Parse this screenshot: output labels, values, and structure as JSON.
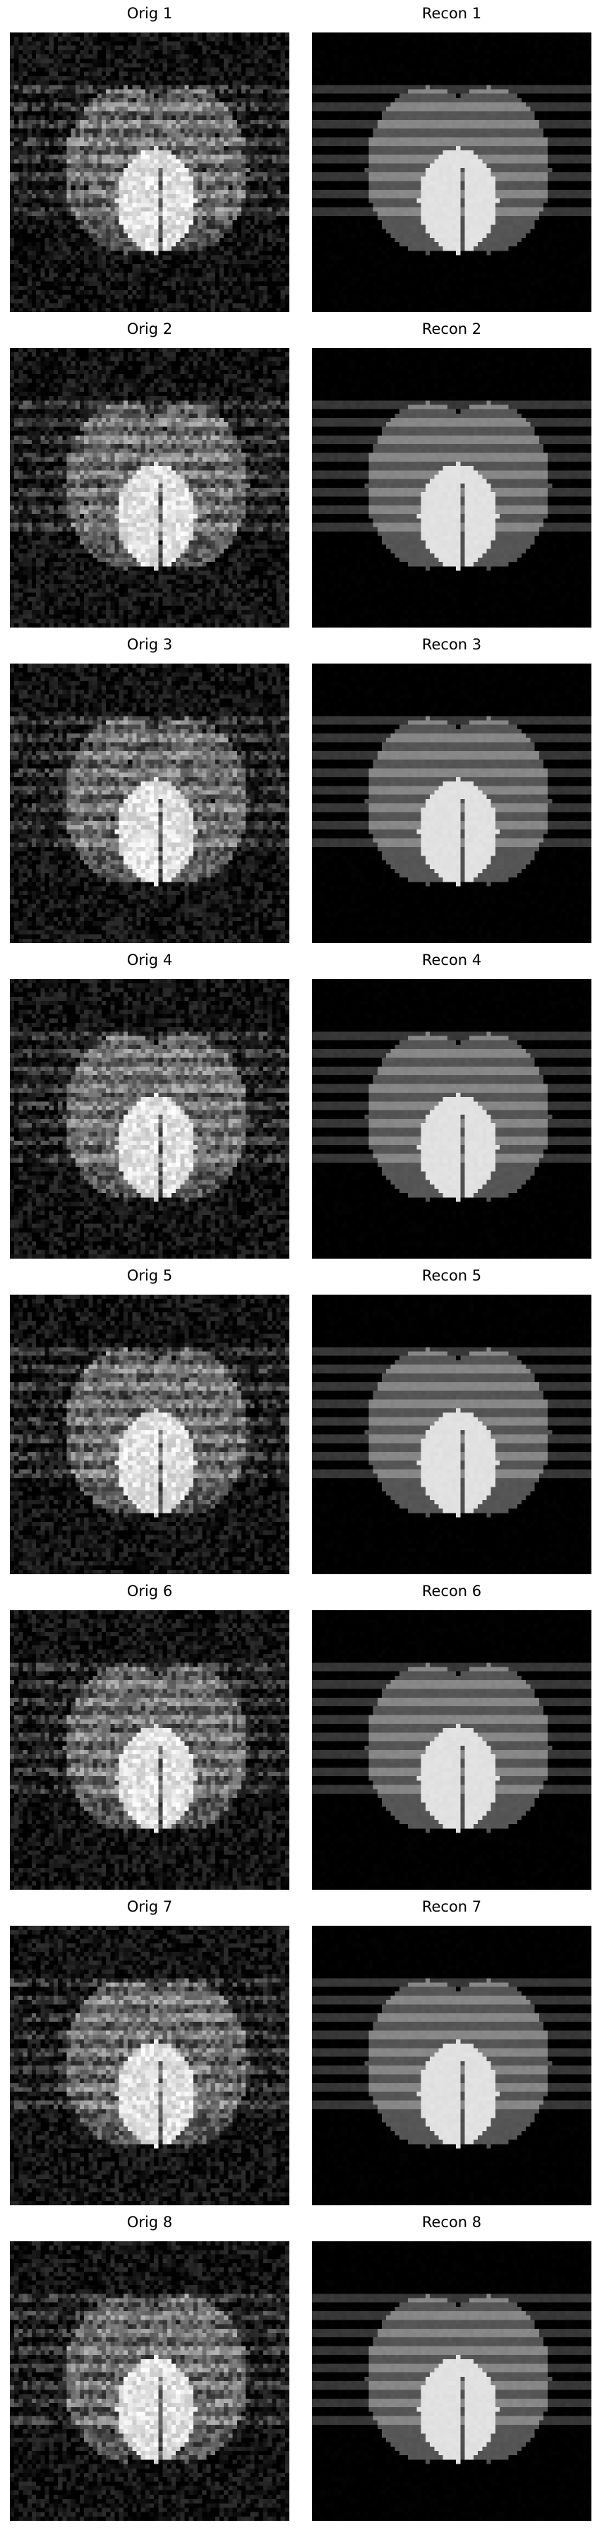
{
  "panels": [
    {
      "orig_title": "Orig 1",
      "recon_title": "Recon 1"
    },
    {
      "orig_title": "Orig 2",
      "recon_title": "Recon 2"
    },
    {
      "orig_title": "Orig 3",
      "recon_title": "Recon 3"
    },
    {
      "orig_title": "Orig 4",
      "recon_title": "Recon 4"
    },
    {
      "orig_title": "Orig 5",
      "recon_title": "Recon 5"
    },
    {
      "orig_title": "Orig 6",
      "recon_title": "Recon 6"
    },
    {
      "orig_title": "Orig 7",
      "recon_title": "Recon 7"
    },
    {
      "orig_title": "Orig 8",
      "recon_title": "Recon 8"
    }
  ],
  "colors": {
    "background": "#000000",
    "lobe": "#5a5a5a",
    "center": "#e8e8e8",
    "stripe": "#8c8c8c"
  }
}
